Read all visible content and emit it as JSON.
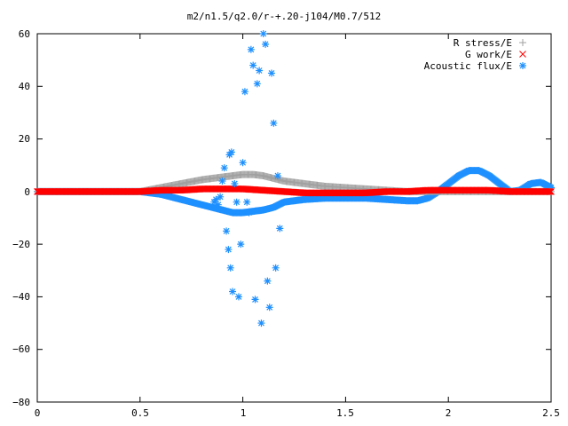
{
  "chart_data": {
    "type": "scatter",
    "title": "m2/n1.5/q2.0/r-+.20-j104/M0.7/512",
    "xlabel": "",
    "ylabel": "",
    "xlim": [
      0,
      2.5
    ],
    "ylim": [
      -80,
      60
    ],
    "x_ticks": [
      "0",
      "0.5",
      "1",
      "1.5",
      "2",
      "2.5"
    ],
    "y_ticks": [
      "60",
      "40",
      "20",
      "0",
      "−20",
      "−40",
      "−60",
      "−80"
    ],
    "grid": false,
    "legend_position": "top-right",
    "series": [
      {
        "name": "R stress/E",
        "marker": "plus",
        "color": "#a0a0a0",
        "x": [
          0,
          0.5,
          0.6,
          0.7,
          0.8,
          0.9,
          0.95,
          1.0,
          1.05,
          1.1,
          1.15,
          1.2,
          1.3,
          1.4,
          1.5,
          1.6,
          1.7,
          1.8,
          1.9,
          2.0,
          2.2,
          2.4,
          2.5
        ],
        "y": [
          0,
          0,
          1.5,
          3,
          4.5,
          5.5,
          6,
          6.5,
          6.5,
          6,
          5,
          4,
          3,
          2,
          1.5,
          1,
          0.5,
          0,
          0,
          0,
          0,
          0,
          0
        ]
      },
      {
        "name": "G work/E",
        "marker": "cross",
        "color": "#ff0000",
        "x": [
          0,
          0.5,
          0.6,
          0.7,
          0.8,
          0.9,
          1.0,
          1.1,
          1.2,
          1.3,
          1.4,
          1.5,
          1.6,
          1.7,
          1.8,
          1.9,
          2.0,
          2.1,
          2.2,
          2.3,
          2.4,
          2.5
        ],
        "y": [
          0,
          0,
          0.5,
          0.5,
          1,
          1,
          1,
          0.5,
          0,
          -0.5,
          -0.5,
          -0.5,
          -0.5,
          0,
          0,
          0.5,
          0.5,
          0.5,
          0.5,
          0,
          0,
          0
        ]
      },
      {
        "name": "Acoustic flux/E",
        "marker": "star",
        "color": "#1e90ff",
        "curve_x": [
          0,
          0.5,
          0.6,
          0.7,
          0.8,
          0.85,
          0.9,
          0.95,
          1.0,
          1.05,
          1.1,
          1.15,
          1.2,
          1.3,
          1.4,
          1.5,
          1.6,
          1.7,
          1.8,
          1.85,
          1.9,
          1.95,
          2.0,
          2.05,
          2.1,
          2.15,
          2.2,
          2.25,
          2.3,
          2.35,
          2.4,
          2.45,
          2.5
        ],
        "curve_y": [
          0,
          0,
          -1,
          -3,
          -5,
          -6,
          -7,
          -8,
          -8,
          -7.5,
          -7,
          -6,
          -4,
          -3,
          -2.5,
          -2.5,
          -2.5,
          -3,
          -3.5,
          -3.5,
          -2.5,
          0,
          3,
          6,
          8,
          8,
          6,
          3,
          0,
          0.5,
          3,
          3.5,
          1.5
        ],
        "scatter_x": [
          0.86,
          0.87,
          0.88,
          0.89,
          0.9,
          0.91,
          0.92,
          0.93,
          0.935,
          0.94,
          0.945,
          0.95,
          0.96,
          0.97,
          0.98,
          0.99,
          1.0,
          1.01,
          1.02,
          1.03,
          1.04,
          1.05,
          1.06,
          1.07,
          1.08,
          1.09,
          1.1,
          1.11,
          1.12,
          1.13,
          1.14,
          1.15,
          1.16,
          1.17,
          1.18
        ],
        "scatter_y": [
          -4,
          -3,
          -5,
          -2,
          4,
          9,
          -15,
          -22,
          14,
          -29,
          15,
          -38,
          3,
          -4,
          -40,
          -20,
          11,
          38,
          -4,
          -8,
          54,
          48,
          -41,
          41,
          46,
          -50,
          60,
          56,
          -34,
          -44,
          45,
          26,
          -29,
          6,
          -14
        ]
      }
    ]
  }
}
